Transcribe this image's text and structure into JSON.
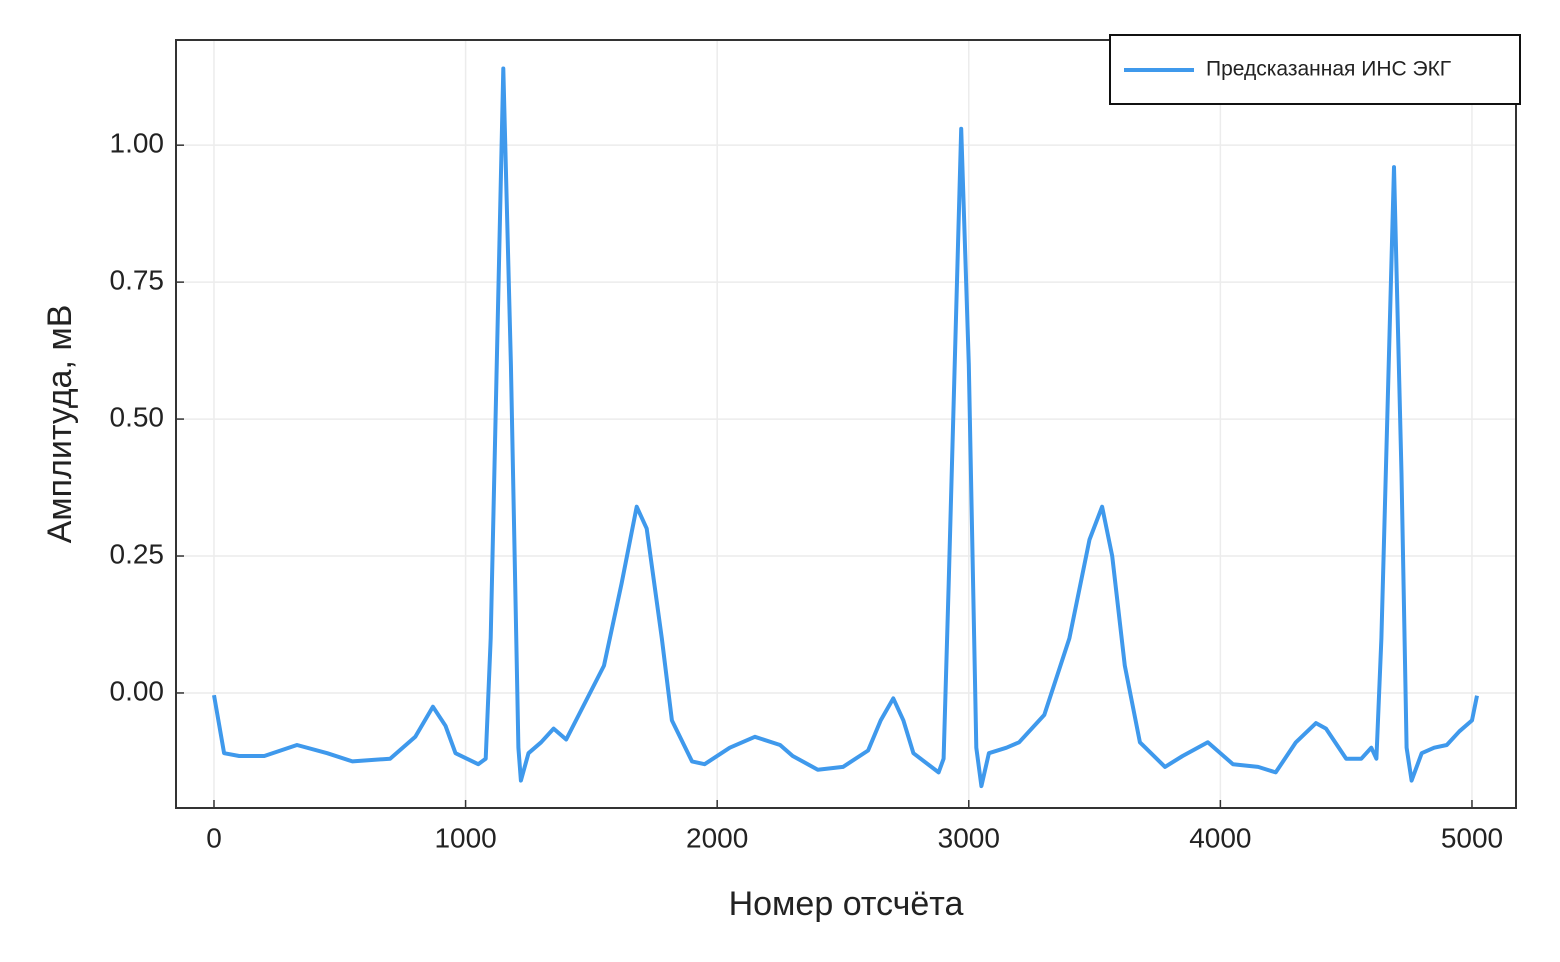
{
  "chart_data": {
    "type": "line",
    "x_label": "Номер отсчёта",
    "y_label": "Амплитуда, мВ",
    "xlim": [
      -151,
      5175
    ],
    "ylim": [
      -0.21,
      1.192
    ],
    "xticks": [
      0,
      1000,
      2000,
      3000,
      4000,
      5000
    ],
    "yticks": [
      {
        "value": 0,
        "label": "0.00"
      },
      {
        "value": 0.25,
        "label": "0.25"
      },
      {
        "value": 0.5,
        "label": "0.50"
      },
      {
        "value": 0.75,
        "label": "0.75"
      },
      {
        "value": 1,
        "label": "1.00"
      }
    ],
    "grid": true,
    "legend": "upper right",
    "series": [
      {
        "name": "Предсказанная ИНС ЭКГ",
        "color": "#3f99ec",
        "x": [
          0,
          40,
          100,
          200,
          330,
          450,
          550,
          700,
          800,
          870,
          920,
          960,
          1050,
          1080,
          1100,
          1150,
          1180,
          1210,
          1220,
          1250,
          1300,
          1350,
          1400,
          1450,
          1550,
          1620,
          1680,
          1720,
          1780,
          1820,
          1900,
          1950,
          2050,
          2150,
          2250,
          2300,
          2400,
          2500,
          2600,
          2650,
          2700,
          2740,
          2780,
          2880,
          2900,
          2920,
          2970,
          3000,
          3030,
          3050,
          3080,
          3150,
          3200,
          3300,
          3400,
          3480,
          3530,
          3570,
          3620,
          3680,
          3780,
          3850,
          3950,
          4050,
          4150,
          4220,
          4300,
          4380,
          4420,
          4500,
          4560,
          4600,
          4620,
          4640,
          4690,
          4720,
          4740,
          4760,
          4800,
          4850,
          4900,
          4950,
          5000,
          5020
        ],
        "values": [
          -0.004,
          -0.11,
          -0.115,
          -0.115,
          -0.095,
          -0.11,
          -0.125,
          -0.12,
          -0.08,
          -0.025,
          -0.06,
          -0.11,
          -0.13,
          -0.12,
          0.1,
          1.14,
          0.6,
          -0.1,
          -0.16,
          -0.11,
          -0.09,
          -0.065,
          -0.085,
          -0.04,
          0.05,
          0.2,
          0.34,
          0.3,
          0.1,
          -0.05,
          -0.125,
          -0.13,
          -0.1,
          -0.08,
          -0.095,
          -0.115,
          -0.14,
          -0.135,
          -0.105,
          -0.05,
          -0.01,
          -0.05,
          -0.11,
          -0.145,
          -0.12,
          0.2,
          1.03,
          0.6,
          -0.1,
          -0.17,
          -0.11,
          -0.1,
          -0.09,
          -0.04,
          0.1,
          0.28,
          0.34,
          0.25,
          0.05,
          -0.09,
          -0.135,
          -0.115,
          -0.09,
          -0.13,
          -0.135,
          -0.145,
          -0.09,
          -0.055,
          -0.065,
          -0.12,
          -0.12,
          -0.1,
          -0.12,
          0.1,
          0.96,
          0.4,
          -0.1,
          -0.16,
          -0.11,
          -0.1,
          -0.095,
          -0.07,
          -0.05,
          -0.005
        ]
      }
    ]
  }
}
